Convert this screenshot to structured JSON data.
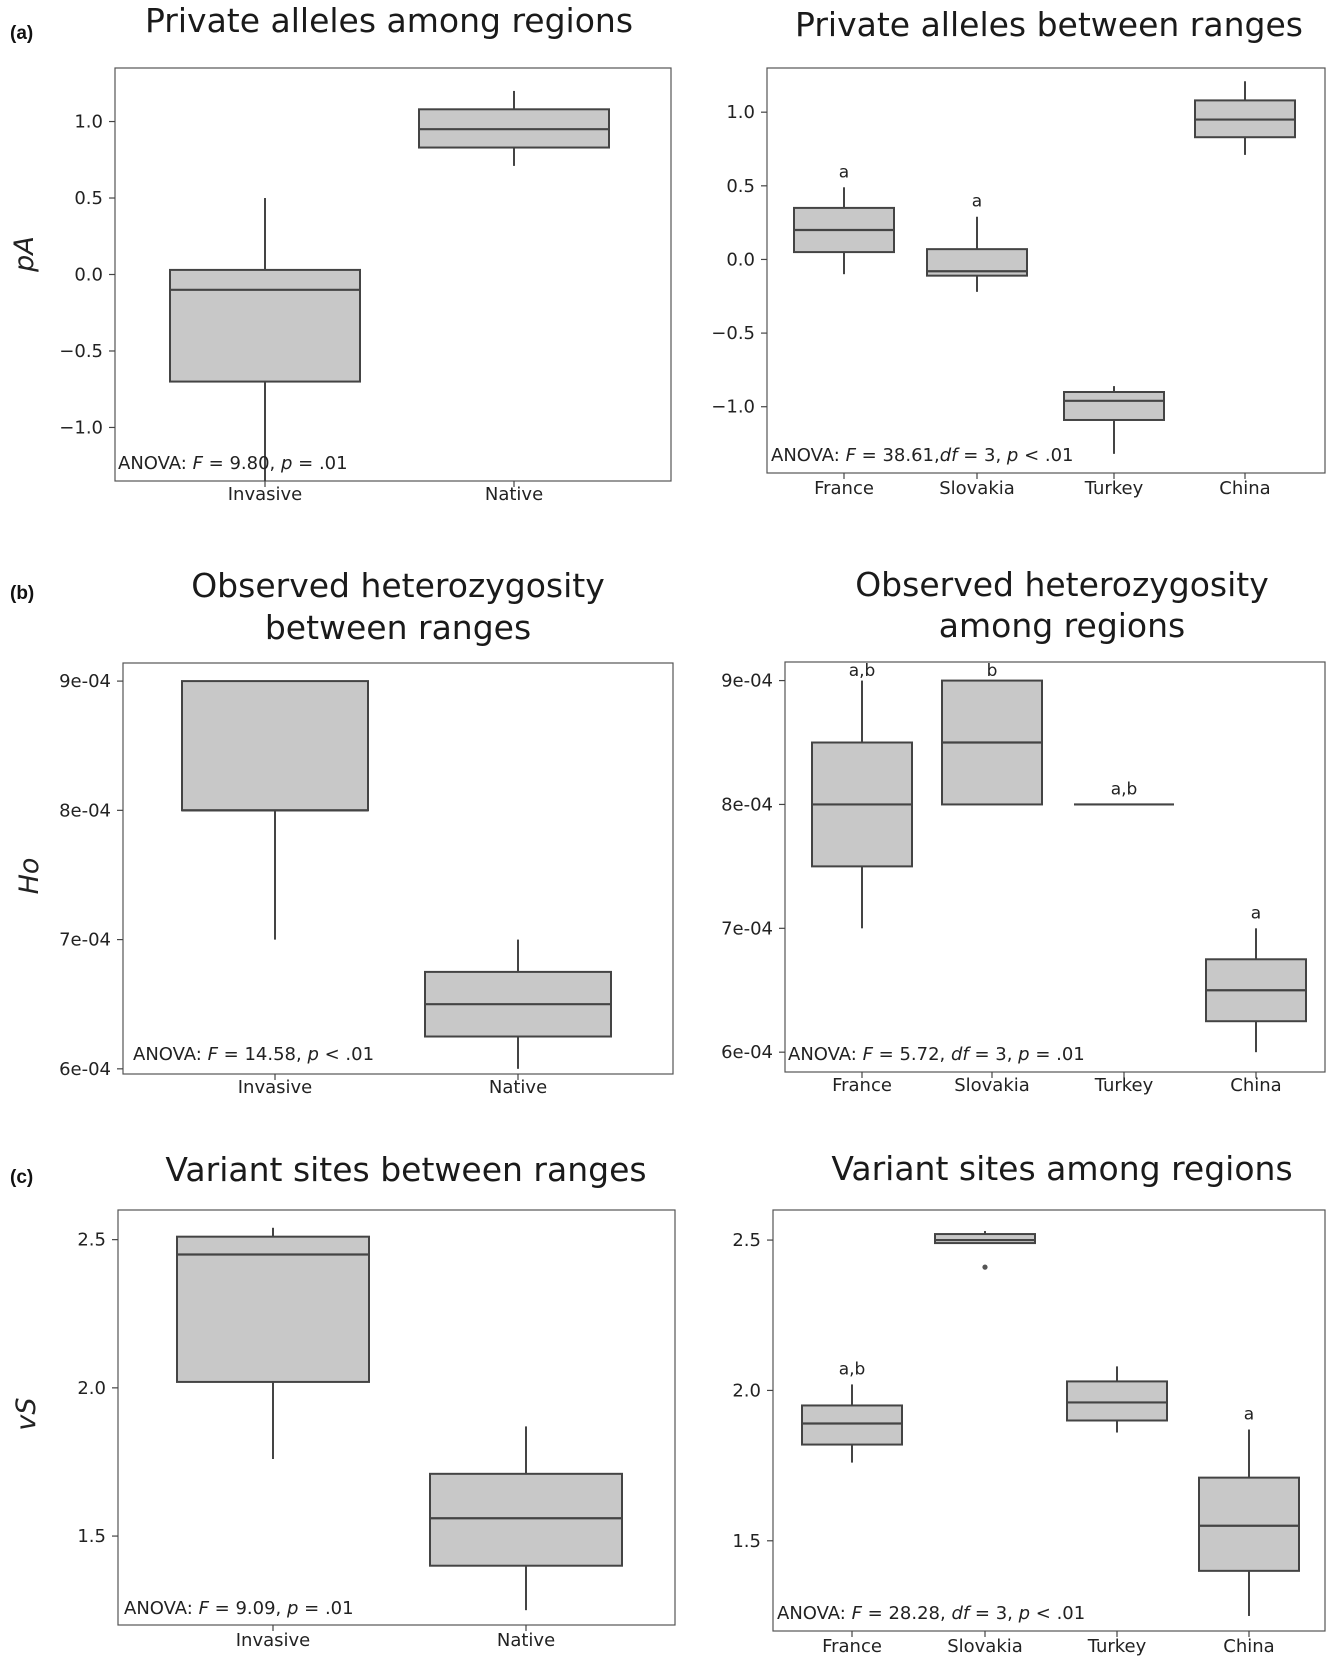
{
  "panel_labels": {
    "a": "(a)",
    "b": "(b)",
    "c": "(c)"
  },
  "colors": {
    "box_fill": "#c8c8c8",
    "box_edge": "#444444",
    "frame": "#555555"
  },
  "chart_data": [
    {
      "id": "a-left",
      "type": "box",
      "title_lines": [
        "Private alleles among regions"
      ],
      "ylabel": "pA",
      "ylim": [
        -1.35,
        1.35
      ],
      "yticks": [
        1.0,
        0.5,
        0.0,
        -0.5,
        -1.0
      ],
      "ytick_labels": [
        "1.0",
        "0.5",
        "0.0",
        "−0.5",
        "−1.0"
      ],
      "categories": [
        "Invasive",
        "Native"
      ],
      "boxes": [
        {
          "category": "Invasive",
          "lower_whisker": -1.35,
          "q1": -0.7,
          "median": -0.1,
          "q3": 0.03,
          "upper_whisker": 0.5
        },
        {
          "category": "Native",
          "lower_whisker": 0.71,
          "q1": 0.83,
          "median": 0.95,
          "q3": 1.08,
          "upper_whisker": 1.2
        }
      ],
      "annotation": {
        "parts": [
          "ANOVA: ",
          "F",
          " = 9.80, ",
          "p",
          " = .01"
        ]
      }
    },
    {
      "id": "a-right",
      "type": "box",
      "title_lines": [
        "Private alleles between ranges"
      ],
      "ylabel": "",
      "ylim": [
        -1.45,
        1.3
      ],
      "yticks": [
        1.0,
        0.5,
        0.0,
        -0.5,
        -1.0
      ],
      "ytick_labels": [
        "1.0",
        "0.5",
        "0.0",
        "−0.5",
        "−1.0"
      ],
      "categories": [
        "France",
        "Slovakia",
        "Turkey",
        "China"
      ],
      "boxes": [
        {
          "category": "France",
          "lower_whisker": -0.1,
          "q1": 0.05,
          "median": 0.2,
          "q3": 0.35,
          "upper_whisker": 0.49,
          "letter": "a"
        },
        {
          "category": "Slovakia",
          "lower_whisker": -0.22,
          "q1": -0.11,
          "median": -0.08,
          "q3": 0.07,
          "upper_whisker": 0.29,
          "letter": "a"
        },
        {
          "category": "Turkey",
          "lower_whisker": -1.32,
          "q1": -1.09,
          "median": -0.96,
          "q3": -0.9,
          "upper_whisker": -0.86
        },
        {
          "category": "China",
          "lower_whisker": 0.71,
          "q1": 0.83,
          "median": 0.95,
          "q3": 1.08,
          "upper_whisker": 1.21
        }
      ],
      "annotation": {
        "parts": [
          "ANOVA: ",
          "F",
          " = 38.61,",
          "df",
          " = 3, ",
          "p",
          " < .01"
        ]
      }
    },
    {
      "id": "b-left",
      "type": "box",
      "title_lines": [
        "Observed heterozygosity",
        "between ranges"
      ],
      "ylabel": "Ho",
      "ylim": [
        0.000596,
        0.000914
      ],
      "yticks": [
        0.0009,
        0.0008,
        0.0007,
        0.0006
      ],
      "ytick_labels": [
        "9e-04",
        "8e-04",
        "7e-04",
        "6e-04"
      ],
      "categories": [
        "Invasive",
        "Native"
      ],
      "boxes": [
        {
          "category": "Invasive",
          "lower_whisker": 0.0007,
          "q1": 0.0008,
          "median": 0.0008,
          "q3": 0.0009,
          "upper_whisker": 0.0009
        },
        {
          "category": "Native",
          "lower_whisker": 0.0006,
          "q1": 0.000625,
          "median": 0.00065,
          "q3": 0.000675,
          "upper_whisker": 0.0007
        }
      ],
      "annotation": {
        "parts": [
          "ANOVA: ",
          "F",
          " = 14.58, ",
          "p",
          " < .01"
        ]
      }
    },
    {
      "id": "b-right",
      "type": "box",
      "title_lines": [
        "Observed heterozygosity",
        "among regions"
      ],
      "ylabel": "",
      "ylim": [
        0.000584,
        0.000915
      ],
      "yticks": [
        0.0009,
        0.0008,
        0.0007,
        0.0006
      ],
      "ytick_labels": [
        "9e-04",
        "8e-04",
        "7e-04",
        "6e-04"
      ],
      "categories": [
        "France",
        "Slovakia",
        "Turkey",
        "China"
      ],
      "boxes": [
        {
          "category": "France",
          "lower_whisker": 0.0007,
          "q1": 0.00075,
          "median": 0.0008,
          "q3": 0.00085,
          "upper_whisker": 0.0009,
          "letter": "a,b"
        },
        {
          "category": "Slovakia",
          "lower_whisker": 0.0008,
          "q1": 0.0008,
          "median": 0.00085,
          "q3": 0.0009,
          "upper_whisker": 0.0009,
          "letter": "b"
        },
        {
          "category": "Turkey",
          "lower_whisker": 0.0008,
          "q1": 0.0008,
          "median": 0.0008,
          "q3": 0.0008,
          "upper_whisker": 0.0008,
          "letter": "a,b"
        },
        {
          "category": "China",
          "lower_whisker": 0.0006,
          "q1": 0.000625,
          "median": 0.00065,
          "q3": 0.000675,
          "upper_whisker": 0.0007,
          "letter": "a"
        }
      ],
      "annotation": {
        "parts": [
          "ANOVA: ",
          "F",
          " = 5.72, ",
          "df",
          " = 3, ",
          "p",
          " = .01"
        ]
      }
    },
    {
      "id": "c-left",
      "type": "box",
      "title_lines": [
        "Variant sites between ranges"
      ],
      "ylabel": "vS",
      "ylim": [
        1.2,
        2.6
      ],
      "yticks": [
        2.5,
        2.0,
        1.5
      ],
      "ytick_labels": [
        "2.5",
        "2.0",
        "1.5"
      ],
      "categories": [
        "Invasive",
        "Native"
      ],
      "boxes": [
        {
          "category": "Invasive",
          "lower_whisker": 1.76,
          "q1": 2.02,
          "median": 2.45,
          "q3": 2.51,
          "upper_whisker": 2.54
        },
        {
          "category": "Native",
          "lower_whisker": 1.25,
          "q1": 1.4,
          "median": 1.56,
          "q3": 1.71,
          "upper_whisker": 1.87
        }
      ],
      "annotation": {
        "parts": [
          "ANOVA: ",
          "F",
          " = 9.09, ",
          "p",
          " = .01"
        ]
      }
    },
    {
      "id": "c-right",
      "type": "box",
      "title_lines": [
        "Variant sites among regions"
      ],
      "ylabel": "",
      "ylim": [
        1.2,
        2.6
      ],
      "yticks": [
        2.5,
        2.0,
        1.5
      ],
      "ytick_labels": [
        "2.5",
        "2.0",
        "1.5"
      ],
      "categories": [
        "France",
        "Slovakia",
        "Turkey",
        "China"
      ],
      "boxes": [
        {
          "category": "France",
          "lower_whisker": 1.76,
          "q1": 1.82,
          "median": 1.89,
          "q3": 1.95,
          "upper_whisker": 2.02,
          "letter": "a,b"
        },
        {
          "category": "Slovakia",
          "lower_whisker": 2.49,
          "q1": 2.49,
          "median": 2.5,
          "q3": 2.52,
          "upper_whisker": 2.53,
          "outliers": [
            2.41
          ]
        },
        {
          "category": "Turkey",
          "lower_whisker": 1.86,
          "q1": 1.9,
          "median": 1.96,
          "q3": 2.03,
          "upper_whisker": 2.08
        },
        {
          "category": "China",
          "lower_whisker": 1.25,
          "q1": 1.4,
          "median": 1.55,
          "q3": 1.71,
          "upper_whisker": 1.87,
          "letter": "a"
        }
      ],
      "annotation": {
        "parts": [
          "ANOVA: ",
          "F",
          " = 28.28, ",
          "df",
          " = 3, ",
          "p",
          " < .01"
        ]
      }
    }
  ]
}
